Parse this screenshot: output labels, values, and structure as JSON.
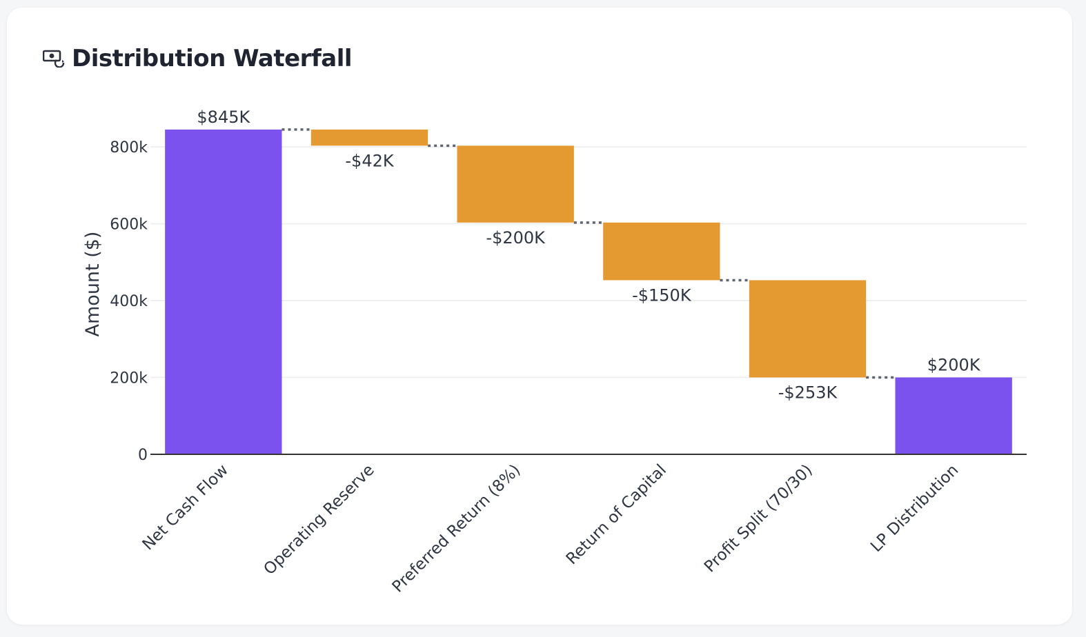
{
  "card": {
    "title": "Distribution Waterfall",
    "icon": "money-exchange-icon"
  },
  "chart_data": {
    "type": "waterfall",
    "title": "Distribution Waterfall",
    "xlabel": "",
    "ylabel": "Amount ($)",
    "ylim": [
      0,
      850000
    ],
    "yticks": [
      0,
      200000,
      400000,
      600000,
      800000
    ],
    "ytick_labels": [
      "0",
      "200k",
      "400k",
      "600k",
      "800k"
    ],
    "grid": true,
    "legend": "none",
    "categories": [
      "Net Cash Flow",
      "Operating Reserve",
      "Preferred Return (8%)",
      "Return of Capital",
      "Profit Split (70/30)",
      "LP Distribution"
    ],
    "measures": [
      "absolute",
      "relative",
      "relative",
      "relative",
      "relative",
      "total"
    ],
    "values": [
      845000,
      -42000,
      -200000,
      -150000,
      -253000,
      200000
    ],
    "labels": [
      "$845K",
      "-$42K",
      "-$200K",
      "-$150K",
      "-$253K",
      "$200K"
    ],
    "colors": {
      "total": "#7b52ee",
      "decrease": "#e59a31",
      "connector": "#5f6470",
      "grid": "#ececef",
      "axis": "#333333"
    }
  }
}
